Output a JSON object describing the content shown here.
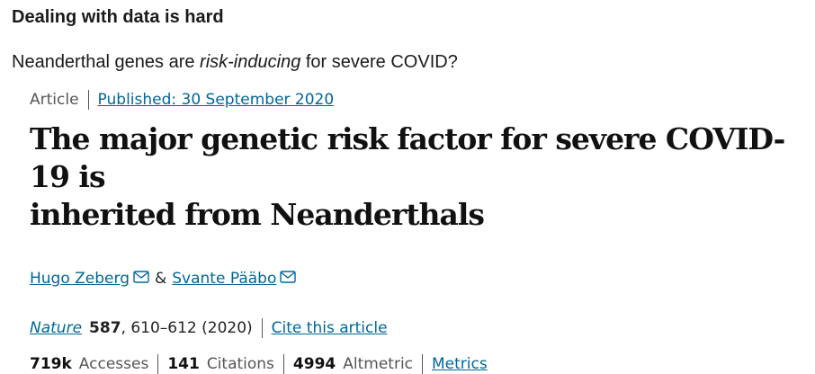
{
  "slide": {
    "title": "Dealing with data is hard",
    "subtitle_pre": "Neanderthal genes are ",
    "subtitle_em": "risk-inducing",
    "subtitle_post": " for severe COVID?"
  },
  "article": {
    "type": "Article",
    "published": "Published: 30 September 2020",
    "title_line1": "The major genetic risk factor for severe COVID-19 is",
    "title_line2": "inherited from Neanderthals",
    "authors": [
      {
        "name": "Hugo Zeberg"
      },
      {
        "name": "Svante Pääbo"
      }
    ],
    "author_separator": "&",
    "journal": "Nature",
    "volume": "587",
    "pages": ", 610–612 (2020)",
    "cite_label": "Cite this article",
    "stats": {
      "accesses_value": "719k",
      "accesses_label": "Accesses",
      "citations_value": "141",
      "citations_label": "Citations",
      "altmetric_value": "4994",
      "altmetric_label": "Altmetric",
      "metrics_label": "Metrics"
    },
    "link_color": "#006699"
  }
}
